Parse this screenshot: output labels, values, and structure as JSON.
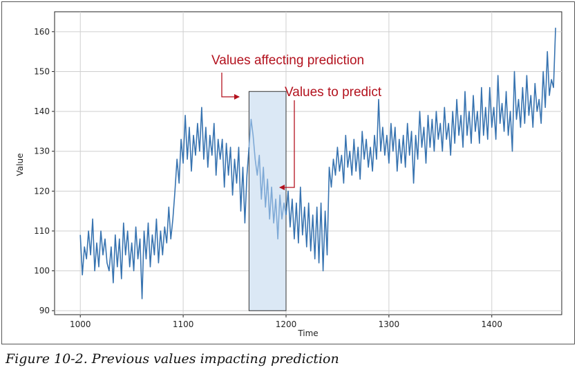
{
  "caption": "Figure 10-2. Previous values impacting prediction",
  "colors": {
    "series": "#3773b0",
    "predict_series": "#7ea9d6",
    "highlight": "#dbe8f5",
    "annotation": "#b3121e",
    "grid": "#cfcfcf"
  },
  "chart_data": {
    "type": "line",
    "xlabel": "Time",
    "ylabel": "Value",
    "xlim": [
      975,
      1468
    ],
    "ylim": [
      89,
      165
    ],
    "xticks": [
      1000,
      1100,
      1200,
      1300,
      1400
    ],
    "yticks": [
      90,
      100,
      110,
      120,
      130,
      140,
      150,
      160
    ],
    "grid": true,
    "window": {
      "x_start": 1164,
      "x_end": 1200,
      "y_top": 145,
      "y_bottom": 90
    },
    "annotations": [
      {
        "text": "Values affecting prediction",
        "target": [
          1164,
          143
        ]
      },
      {
        "text": "Values to predict",
        "target": [
          1200,
          120
        ]
      }
    ],
    "series": [
      {
        "points": [
          [
            1000,
            109
          ],
          [
            1002,
            99
          ],
          [
            1004,
            106
          ],
          [
            1006,
            103
          ],
          [
            1008,
            110
          ],
          [
            1010,
            104
          ],
          [
            1012,
            113
          ],
          [
            1014,
            100
          ],
          [
            1016,
            107
          ],
          [
            1018,
            101
          ],
          [
            1020,
            110
          ],
          [
            1022,
            104
          ],
          [
            1024,
            108
          ],
          [
            1026,
            102
          ],
          [
            1028,
            100
          ],
          [
            1030,
            106
          ],
          [
            1032,
            97
          ],
          [
            1034,
            109
          ],
          [
            1036,
            101
          ],
          [
            1038,
            108
          ],
          [
            1040,
            98
          ],
          [
            1042,
            112
          ],
          [
            1044,
            104
          ],
          [
            1046,
            110
          ],
          [
            1048,
            101
          ],
          [
            1050,
            107
          ],
          [
            1052,
            100
          ],
          [
            1054,
            111
          ],
          [
            1056,
            103
          ],
          [
            1058,
            108
          ],
          [
            1060,
            93
          ],
          [
            1062,
            110
          ],
          [
            1064,
            103
          ],
          [
            1066,
            112
          ],
          [
            1068,
            101
          ],
          [
            1070,
            109
          ],
          [
            1072,
            104
          ],
          [
            1074,
            113
          ],
          [
            1076,
            102
          ],
          [
            1078,
            110
          ],
          [
            1080,
            104
          ],
          [
            1082,
            111
          ],
          [
            1084,
            107
          ],
          [
            1086,
            116
          ],
          [
            1088,
            108
          ],
          [
            1090,
            113
          ],
          [
            1092,
            120
          ],
          [
            1094,
            128
          ],
          [
            1096,
            122
          ],
          [
            1098,
            133
          ],
          [
            1100,
            127
          ],
          [
            1102,
            139
          ],
          [
            1104,
            128
          ],
          [
            1106,
            136
          ],
          [
            1108,
            125
          ],
          [
            1110,
            134
          ],
          [
            1112,
            129
          ],
          [
            1114,
            137
          ],
          [
            1116,
            130
          ],
          [
            1118,
            141
          ],
          [
            1120,
            128
          ],
          [
            1122,
            136
          ],
          [
            1124,
            126
          ],
          [
            1126,
            134
          ],
          [
            1128,
            129
          ],
          [
            1130,
            137
          ],
          [
            1132,
            124
          ],
          [
            1134,
            133
          ],
          [
            1136,
            128
          ],
          [
            1138,
            133
          ],
          [
            1140,
            121
          ],
          [
            1142,
            132
          ],
          [
            1144,
            124
          ],
          [
            1146,
            131
          ],
          [
            1148,
            119
          ],
          [
            1150,
            128
          ],
          [
            1152,
            122
          ],
          [
            1154,
            131
          ],
          [
            1156,
            115
          ],
          [
            1158,
            126
          ],
          [
            1160,
            112
          ],
          [
            1162,
            124
          ],
          [
            1164,
            131
          ]
        ]
      },
      {
        "points": [
          [
            1164,
            131
          ],
          [
            1166,
            138
          ],
          [
            1168,
            134
          ],
          [
            1170,
            128
          ],
          [
            1172,
            124
          ],
          [
            1174,
            129
          ],
          [
            1176,
            118
          ],
          [
            1178,
            126
          ],
          [
            1180,
            116
          ],
          [
            1182,
            123
          ],
          [
            1184,
            113
          ],
          [
            1186,
            121
          ],
          [
            1188,
            112
          ],
          [
            1190,
            118
          ],
          [
            1192,
            108
          ],
          [
            1194,
            119
          ],
          [
            1196,
            113
          ],
          [
            1198,
            117
          ],
          [
            1200,
            114
          ]
        ]
      },
      {
        "points": [
          [
            1200,
            114
          ],
          [
            1202,
            120
          ],
          [
            1204,
            111
          ],
          [
            1206,
            118
          ],
          [
            1208,
            108
          ],
          [
            1210,
            117
          ],
          [
            1212,
            107
          ],
          [
            1214,
            121
          ],
          [
            1216,
            109
          ],
          [
            1218,
            116
          ],
          [
            1220,
            106
          ],
          [
            1222,
            117
          ],
          [
            1224,
            105
          ],
          [
            1226,
            114
          ],
          [
            1228,
            103
          ],
          [
            1230,
            116
          ],
          [
            1232,
            102
          ],
          [
            1234,
            117
          ],
          [
            1236,
            100
          ],
          [
            1238,
            115
          ],
          [
            1240,
            104
          ],
          [
            1242,
            126
          ],
          [
            1244,
            121
          ],
          [
            1246,
            128
          ],
          [
            1248,
            124
          ],
          [
            1250,
            131
          ],
          [
            1252,
            125
          ],
          [
            1254,
            129
          ],
          [
            1256,
            122
          ],
          [
            1258,
            134
          ],
          [
            1260,
            126
          ],
          [
            1262,
            130
          ],
          [
            1264,
            124
          ],
          [
            1266,
            133
          ],
          [
            1268,
            125
          ],
          [
            1270,
            131
          ],
          [
            1272,
            123
          ],
          [
            1274,
            135
          ],
          [
            1276,
            128
          ],
          [
            1278,
            133
          ],
          [
            1280,
            126
          ],
          [
            1282,
            131
          ],
          [
            1284,
            125
          ],
          [
            1286,
            134
          ],
          [
            1288,
            128
          ],
          [
            1290,
            143
          ],
          [
            1292,
            130
          ],
          [
            1294,
            136
          ],
          [
            1296,
            129
          ],
          [
            1298,
            134
          ],
          [
            1300,
            127
          ],
          [
            1302,
            137
          ],
          [
            1304,
            130
          ],
          [
            1306,
            136
          ],
          [
            1308,
            125
          ],
          [
            1310,
            133
          ],
          [
            1312,
            127
          ],
          [
            1314,
            134
          ],
          [
            1316,
            126
          ],
          [
            1318,
            137
          ],
          [
            1320,
            129
          ],
          [
            1322,
            135
          ],
          [
            1324,
            122
          ],
          [
            1326,
            134
          ],
          [
            1328,
            128
          ],
          [
            1330,
            140
          ],
          [
            1332,
            131
          ],
          [
            1334,
            136
          ],
          [
            1336,
            127
          ],
          [
            1338,
            139
          ],
          [
            1340,
            131
          ],
          [
            1342,
            138
          ],
          [
            1344,
            130
          ],
          [
            1346,
            140
          ],
          [
            1348,
            133
          ],
          [
            1350,
            137
          ],
          [
            1352,
            130
          ],
          [
            1354,
            141
          ],
          [
            1356,
            133
          ],
          [
            1358,
            137
          ],
          [
            1360,
            129
          ],
          [
            1362,
            140
          ],
          [
            1364,
            132
          ],
          [
            1366,
            143
          ],
          [
            1368,
            134
          ],
          [
            1370,
            139
          ],
          [
            1372,
            131
          ],
          [
            1374,
            145
          ],
          [
            1376,
            134
          ],
          [
            1378,
            140
          ],
          [
            1380,
            132
          ],
          [
            1382,
            144
          ],
          [
            1384,
            135
          ],
          [
            1386,
            140
          ],
          [
            1388,
            132
          ],
          [
            1390,
            146
          ],
          [
            1392,
            134
          ],
          [
            1394,
            141
          ],
          [
            1396,
            133
          ],
          [
            1398,
            146
          ],
          [
            1400,
            136
          ],
          [
            1402,
            141
          ],
          [
            1404,
            133
          ],
          [
            1406,
            149
          ],
          [
            1408,
            137
          ],
          [
            1410,
            142
          ],
          [
            1412,
            135
          ],
          [
            1414,
            145
          ],
          [
            1416,
            134
          ],
          [
            1418,
            140
          ],
          [
            1420,
            130
          ],
          [
            1422,
            150
          ],
          [
            1424,
            138
          ],
          [
            1426,
            143
          ],
          [
            1428,
            136
          ],
          [
            1430,
            146
          ],
          [
            1432,
            137
          ],
          [
            1434,
            149
          ],
          [
            1436,
            139
          ],
          [
            1438,
            144
          ],
          [
            1440,
            136
          ],
          [
            1442,
            147
          ],
          [
            1444,
            140
          ],
          [
            1446,
            143
          ],
          [
            1448,
            137
          ],
          [
            1450,
            150
          ],
          [
            1452,
            141
          ],
          [
            1454,
            155
          ],
          [
            1456,
            144
          ],
          [
            1458,
            148
          ],
          [
            1460,
            146
          ],
          [
            1462,
            161
          ]
        ]
      }
    ]
  }
}
